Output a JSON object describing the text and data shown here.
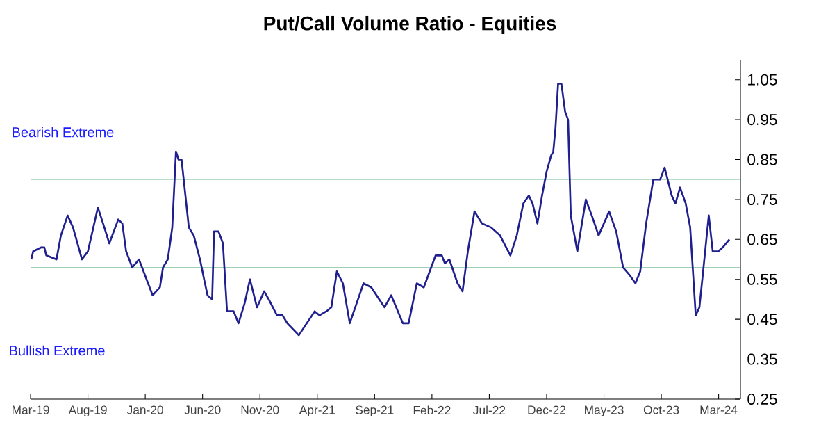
{
  "chart_data": {
    "type": "line",
    "title": "Put/Call Volume Ratio - Equities",
    "annotations": [
      "Bearish Extreme",
      "Bullish Extreme"
    ],
    "x": [
      "2019-03-03",
      "2019-03-08",
      "2019-03-30",
      "2019-04-07",
      "2019-04-12",
      "2019-05-09",
      "2019-05-21",
      "2019-06-08",
      "2019-06-22",
      "2019-07-16",
      "2019-08-01",
      "2019-08-28",
      "2019-09-14",
      "2019-09-27",
      "2019-10-21",
      "2019-11-01",
      "2019-11-11",
      "2019-11-27",
      "2019-12-15",
      "2020-01-21",
      "2020-02-09",
      "2020-02-17",
      "2020-02-29",
      "2020-03-12",
      "2020-03-22",
      "2020-03-29",
      "2020-04-06",
      "2020-04-25",
      "2020-05-08",
      "2020-05-25",
      "2020-06-05",
      "2020-06-14",
      "2020-06-26",
      "2020-07-01",
      "2020-07-13",
      "2020-07-25",
      "2020-08-05",
      "2020-08-23",
      "2020-09-05",
      "2020-09-21",
      "2020-10-05",
      "2020-10-24",
      "2020-11-12",
      "2020-11-24",
      "2020-12-16",
      "2020-12-31",
      "2021-01-13",
      "2021-02-12",
      "2021-03-25",
      "2021-04-07",
      "2021-04-25",
      "2021-05-08",
      "2021-05-23",
      "2021-06-08",
      "2021-06-26",
      "2021-08-02",
      "2021-08-23",
      "2021-09-27",
      "2021-10-15",
      "2021-11-15",
      "2021-11-30",
      "2021-12-22",
      "2022-01-10",
      "2022-02-10",
      "2022-02-25",
      "2022-03-05",
      "2022-03-17",
      "2022-04-08",
      "2022-04-21",
      "2022-05-05",
      "2022-05-23",
      "2022-06-12",
      "2022-07-06",
      "2022-07-30",
      "2022-08-27",
      "2022-09-13",
      "2022-09-30",
      "2022-10-15",
      "2022-10-25",
      "2022-11-07",
      "2022-11-19",
      "2022-12-01",
      "2022-12-13",
      "2022-12-19",
      "2022-12-25",
      "2023-01-01",
      "2023-01-10",
      "2023-01-20",
      "2023-01-28",
      "2023-02-04",
      "2023-02-20",
      "2023-03-14",
      "2023-03-30",
      "2023-04-17",
      "2023-05-15",
      "2023-06-03",
      "2023-06-21",
      "2023-07-09",
      "2023-07-24",
      "2023-08-06",
      "2023-08-22",
      "2023-09-10",
      "2023-09-28",
      "2023-10-10",
      "2023-10-29",
      "2023-11-08",
      "2023-11-20",
      "2023-12-05",
      "2023-12-17",
      "2024-01-01",
      "2024-01-11",
      "2024-01-21",
      "2024-02-05",
      "2024-02-15",
      "2024-02-29",
      "2024-03-12",
      "2024-03-30"
    ],
    "series": [
      {
        "color": "#1f1f8f",
        "values": [
          0.6,
          0.62,
          0.63,
          0.63,
          0.61,
          0.6,
          0.66,
          0.71,
          0.68,
          0.6,
          0.62,
          0.73,
          0.68,
          0.64,
          0.7,
          0.69,
          0.62,
          0.58,
          0.6,
          0.51,
          0.53,
          0.58,
          0.6,
          0.68,
          0.87,
          0.85,
          0.85,
          0.68,
          0.66,
          0.6,
          0.55,
          0.51,
          0.5,
          0.67,
          0.67,
          0.64,
          0.47,
          0.47,
          0.44,
          0.49,
          0.55,
          0.48,
          0.52,
          0.5,
          0.46,
          0.46,
          0.44,
          0.41,
          0.47,
          0.46,
          0.47,
          0.48,
          0.57,
          0.54,
          0.44,
          0.54,
          0.53,
          0.48,
          0.51,
          0.44,
          0.44,
          0.54,
          0.53,
          0.61,
          0.61,
          0.59,
          0.6,
          0.54,
          0.52,
          0.62,
          0.72,
          0.69,
          0.68,
          0.66,
          0.61,
          0.66,
          0.74,
          0.76,
          0.74,
          0.69,
          0.76,
          0.82,
          0.86,
          0.87,
          0.93,
          1.04,
          1.04,
          0.97,
          0.95,
          0.71,
          0.62,
          0.75,
          0.71,
          0.66,
          0.72,
          0.67,
          0.58,
          0.56,
          0.54,
          0.57,
          0.69,
          0.8,
          0.8,
          0.83,
          0.76,
          0.74,
          0.78,
          0.74,
          0.68,
          0.46,
          0.48,
          0.57,
          0.71,
          0.62,
          0.62,
          0.63,
          0.65
        ]
      }
    ],
    "xlim": [
      "2019-03-01",
      "2024-04-28"
    ],
    "xticks": [
      {
        "value": "2019-03-01",
        "label": "Mar-19"
      },
      {
        "value": "2019-08-01",
        "label": "Aug-19"
      },
      {
        "value": "2020-01-01",
        "label": "Jan-20"
      },
      {
        "value": "2020-06-01",
        "label": "Jun-20"
      },
      {
        "value": "2020-11-01",
        "label": "Nov-20"
      },
      {
        "value": "2021-04-01",
        "label": "Apr-21"
      },
      {
        "value": "2021-09-01",
        "label": "Sep-21"
      },
      {
        "value": "2022-02-01",
        "label": "Feb-22"
      },
      {
        "value": "2022-07-01",
        "label": "Jul-22"
      },
      {
        "value": "2022-12-01",
        "label": "Dec-22"
      },
      {
        "value": "2023-05-01",
        "label": "May-23"
      },
      {
        "value": "2023-10-01",
        "label": "Oct-23"
      },
      {
        "value": "2024-03-01",
        "label": "Mar-24"
      }
    ],
    "ylim": [
      0.25,
      1.1
    ],
    "yticks": [
      0.25,
      0.35,
      0.45,
      0.55,
      0.65,
      0.75,
      0.85,
      0.95,
      1.05
    ],
    "ref_lines": [
      {
        "axis": "y",
        "value": 0.8,
        "color": "#9fcfb5"
      },
      {
        "axis": "y",
        "value": 0.58,
        "color": "#9fcfb5"
      }
    ],
    "grid": false,
    "marker": "none",
    "line_style": "solid"
  }
}
